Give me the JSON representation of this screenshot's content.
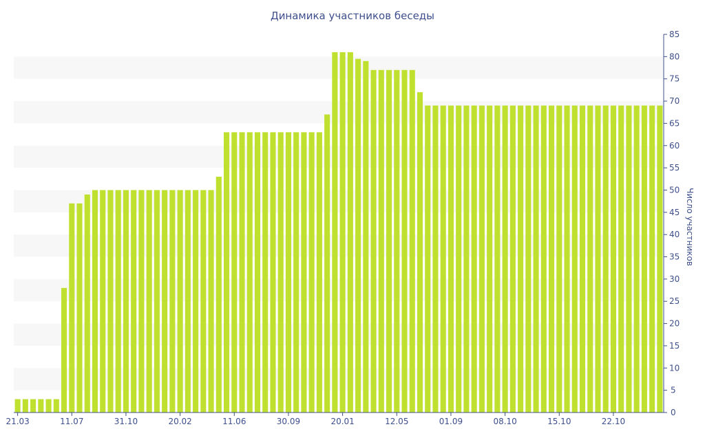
{
  "chart_data": {
    "type": "bar",
    "title": "Динамика участников беседы",
    "xlabel": "",
    "ylabel": "Число участников",
    "ylim": [
      0,
      85
    ],
    "yticks": [
      0,
      5,
      10,
      15,
      20,
      25,
      30,
      35,
      40,
      45,
      50,
      55,
      60,
      65,
      70,
      75,
      80,
      85
    ],
    "x_tick_labels": [
      "21.03",
      "11.07",
      "31.10",
      "20.02",
      "11.06",
      "30.09",
      "20.01",
      "12.05",
      "01.09",
      "08.10",
      "15.10",
      "22.10"
    ],
    "x_tick_bar_index": [
      0,
      7,
      14,
      21,
      28,
      35,
      42,
      49,
      56,
      63,
      70,
      77
    ],
    "values": [
      3,
      3,
      3,
      3,
      3,
      3,
      28,
      47,
      47,
      49,
      50,
      50,
      50,
      50,
      50,
      50,
      50,
      50,
      50,
      50,
      50,
      50,
      50,
      50,
      50,
      50,
      53,
      63,
      63,
      63,
      63,
      63,
      63,
      63,
      63,
      63,
      63,
      63,
      63,
      63,
      67,
      81,
      81,
      81,
      79.5,
      79,
      77,
      77,
      77,
      77,
      77,
      77,
      72,
      69,
      69,
      69,
      69,
      69,
      69,
      69,
      69,
      69,
      69,
      69,
      69,
      69,
      69,
      69,
      69,
      69,
      69,
      69,
      69,
      69,
      69,
      69,
      69,
      69,
      69,
      69,
      69,
      69,
      69,
      69
    ],
    "grid": "alternating-bands",
    "legend": "none",
    "colors": {
      "bar": "#bfe02f",
      "band": "#f7f7f7",
      "text": "#3e4f8c",
      "axis": "#3e4f8c"
    }
  }
}
